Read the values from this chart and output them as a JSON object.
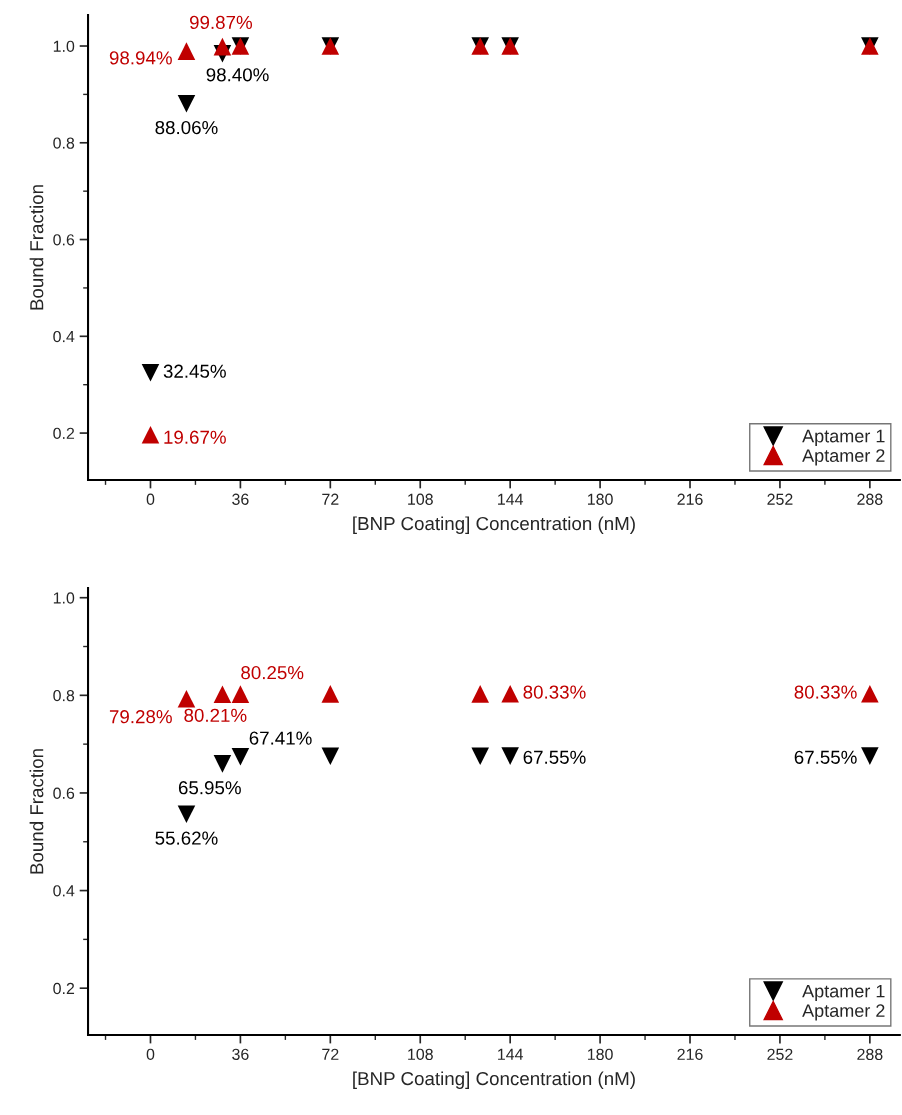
{
  "chart_data": [
    {
      "type": "scatter",
      "xlabel": "[BNP Coating] Concentration (nM)",
      "ylabel": "Bound Fraction",
      "xlim": [
        -25,
        300
      ],
      "xticks": [
        0,
        36,
        72,
        108,
        144,
        180,
        216,
        252,
        288
      ],
      "ylim": [
        0.103,
        1.064
      ],
      "yticks": [
        0.2,
        0.4,
        0.6,
        0.8,
        {
          "value": 1,
          "label": "1.0"
        }
      ],
      "grid": false,
      "legend": "bottom right",
      "series": [
        {
          "name": "Aptamer 1",
          "color": "#000000",
          "marker": "triangle_down",
          "x": [
            0,
            14.4,
            28.8,
            36,
            72,
            132,
            144,
            288
          ],
          "values": [
            0.3245,
            0.8806,
            0.984,
            1.0,
            1.0,
            1.0,
            1.0,
            1.0
          ],
          "value_labels": [
            "32.45%",
            "88.06%",
            "98.40%",
            null,
            null,
            null,
            null,
            null
          ]
        },
        {
          "name": "Aptamer 2",
          "color": "#c00000",
          "marker": "triangle",
          "x": [
            0,
            14.4,
            28.8,
            36,
            72,
            132,
            144,
            288
          ],
          "values": [
            0.1967,
            0.9894,
            0.9987,
            1.0,
            1.0,
            1.0,
            1.0,
            1.0
          ],
          "value_labels": [
            "19.67%",
            "98.94%",
            "99.87%",
            null,
            null,
            null,
            null,
            null
          ]
        }
      ]
    },
    {
      "type": "scatter",
      "xlabel": "[BNP Coating] Concentration (nM)",
      "ylabel": "Bound Fraction",
      "xlim": [
        -25,
        300
      ],
      "xticks": [
        0,
        36,
        72,
        108,
        144,
        180,
        216,
        252,
        288
      ],
      "ylim": [
        0.104,
        1.02
      ],
      "yticks": [
        0.2,
        0.4,
        0.6,
        0.8,
        {
          "value": 1,
          "label": "1.0"
        }
      ],
      "grid": false,
      "legend": "bottom right",
      "series": [
        {
          "name": "Aptamer 1",
          "color": "#000000",
          "marker": "triangle_down",
          "x": [
            14.4,
            28.8,
            36,
            72,
            132,
            144,
            288
          ],
          "values": [
            0.5562,
            0.6595,
            0.6741,
            0.675,
            0.675,
            0.6755,
            0.6755
          ],
          "value_labels": [
            "55.62%",
            "65.95%",
            "67.41%",
            null,
            null,
            "67.55%",
            "67.55%"
          ]
        },
        {
          "name": "Aptamer 2",
          "color": "#c00000",
          "marker": "triangle",
          "x": [
            14.4,
            28.8,
            36,
            72,
            132,
            144,
            288
          ],
          "values": [
            0.7928,
            0.8021,
            0.8025,
            0.803,
            0.803,
            0.8033,
            0.8033
          ],
          "value_labels": [
            "79.28%",
            "80.21%",
            "80.25%",
            null,
            null,
            "80.33%",
            "80.33%"
          ]
        }
      ]
    }
  ]
}
